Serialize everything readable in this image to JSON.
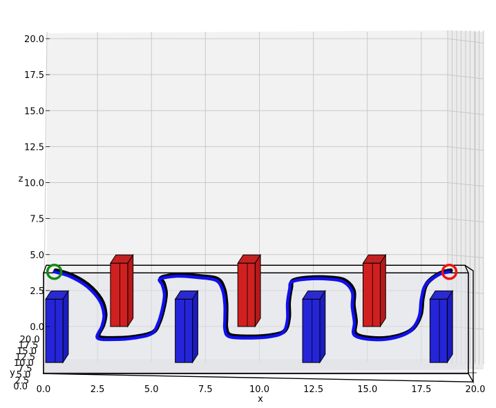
{
  "chart_data": {
    "type": "3d-scatter-path",
    "title": "",
    "xlabel": "x",
    "ylabel": "y",
    "zlabel": "z",
    "xlim": [
      0,
      20
    ],
    "ylim": [
      0,
      20
    ],
    "zlim": [
      0,
      20
    ],
    "x_ticks": [
      "0.0",
      "2.5",
      "5.0",
      "7.5",
      "10.0",
      "12.5",
      "15.0",
      "17.5",
      "20.0"
    ],
    "y_ticks": [
      "0.0",
      "2.5",
      "5.0",
      "7.5",
      "10.0",
      "12.5",
      "15.0",
      "17.5",
      "20.0"
    ],
    "z_ticks": [
      "0.0",
      "2.5",
      "5.0",
      "7.5",
      "10.0",
      "12.5",
      "15.0",
      "17.5",
      "20.0"
    ],
    "grid": true,
    "start_marker": {
      "x": 0.5,
      "z": 3.8,
      "color": "#118811"
    },
    "goal_marker": {
      "x": 18.8,
      "z": 3.8,
      "color": "#ee1111"
    },
    "red_obstacles": [
      {
        "x0": 3.1,
        "x1": 3.9,
        "z0": 0.0,
        "z1": 4.4
      },
      {
        "x0": 9.0,
        "x1": 9.8,
        "z0": 0.0,
        "z1": 4.4
      },
      {
        "x0": 14.8,
        "x1": 15.6,
        "z0": 0.0,
        "z1": 4.4
      }
    ],
    "blue_obstacles": [
      {
        "x0": 0.1,
        "x1": 0.9,
        "z0": -2.5,
        "z1": 1.9
      },
      {
        "x0": 6.1,
        "x1": 6.9,
        "z0": -2.5,
        "z1": 1.9
      },
      {
        "x0": 12.0,
        "x1": 12.8,
        "z0": -2.5,
        "z1": 1.9
      },
      {
        "x0": 17.9,
        "x1": 18.7,
        "z0": -2.5,
        "z1": 1.9
      }
    ],
    "corridor": {
      "x0": 0.0,
      "x1": 20.0,
      "z0": -2.6,
      "z1": 4.4
    },
    "path": {
      "color": "#1010ee",
      "edge_color": "#000000",
      "x": [
        0.5,
        1.2,
        2.0,
        2.6,
        2.8,
        2.7,
        2.5,
        3.3,
        4.2,
        5.0,
        5.3,
        5.5,
        5.6,
        5.5,
        5.4,
        6.2,
        7.2,
        8.0,
        8.3,
        8.4,
        8.4,
        8.4,
        8.6,
        9.5,
        10.5,
        11.1,
        11.3,
        11.3,
        11.4,
        11.5,
        12.2,
        13.2,
        13.9,
        14.3,
        14.3,
        14.4,
        14.4,
        15.2,
        16.2,
        17.0,
        17.4,
        17.5,
        17.7,
        18.3,
        18.8
      ],
      "z": [
        3.8,
        3.5,
        2.8,
        1.8,
        0.8,
        0.0,
        -0.8,
        -0.9,
        -0.8,
        -0.5,
        0.2,
        1.2,
        2.2,
        2.9,
        3.3,
        3.5,
        3.4,
        3.2,
        2.5,
        1.5,
        0.5,
        -0.2,
        -0.7,
        -0.8,
        -0.7,
        -0.4,
        0.5,
        1.6,
        2.6,
        3.1,
        3.3,
        3.3,
        3.1,
        2.4,
        1.4,
        0.3,
        -0.6,
        -0.9,
        -0.8,
        -0.3,
        0.7,
        1.9,
        2.9,
        3.6,
        3.8
      ]
    }
  }
}
